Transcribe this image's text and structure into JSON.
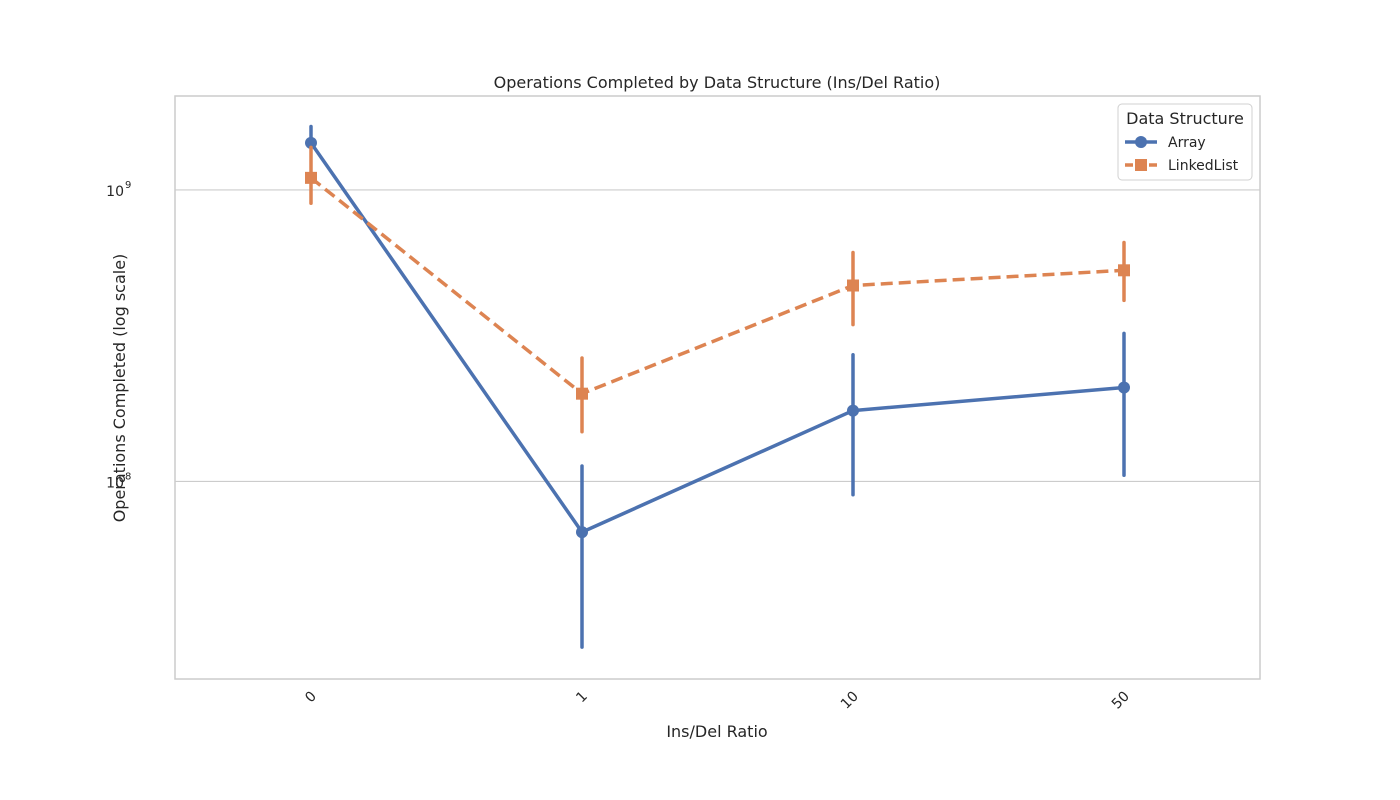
{
  "chart_data": {
    "type": "line",
    "title": "Operations Completed by Data Structure (Ins/Del Ratio)",
    "xlabel": "Ins/Del Ratio",
    "ylabel": "Operations Completed (log scale)",
    "categories": [
      "0",
      "1",
      "10",
      "50"
    ],
    "y_scale": "log",
    "ylim": [
      21000000,
      2100000000
    ],
    "y_ticks": [
      {
        "value": 100000000,
        "base": "10",
        "exp": "8"
      },
      {
        "value": 1000000000,
        "base": "10",
        "exp": "9"
      }
    ],
    "grid": "horizontal",
    "legend": {
      "title": "Data Structure",
      "position": "top-right"
    },
    "series": [
      {
        "name": "Array",
        "color": "#4c72b0",
        "line_style": "solid",
        "marker": "circle",
        "values": [
          1450000000,
          67000000,
          175000000,
          210000000
        ],
        "ci_low": [
          null,
          27000000,
          90000000,
          105000000
        ],
        "ci_high": [
          1650000000,
          113000000,
          272000000,
          322000000
        ]
      },
      {
        "name": "LinkedList",
        "color": "#dd8452",
        "line_style": "dashed",
        "marker": "square",
        "values": [
          1100000000,
          200000000,
          470000000,
          530000000
        ],
        "ci_low": [
          900000000,
          148000000,
          345000000,
          418000000
        ],
        "ci_high": [
          1400000000,
          265000000,
          610000000,
          660000000
        ]
      }
    ]
  }
}
